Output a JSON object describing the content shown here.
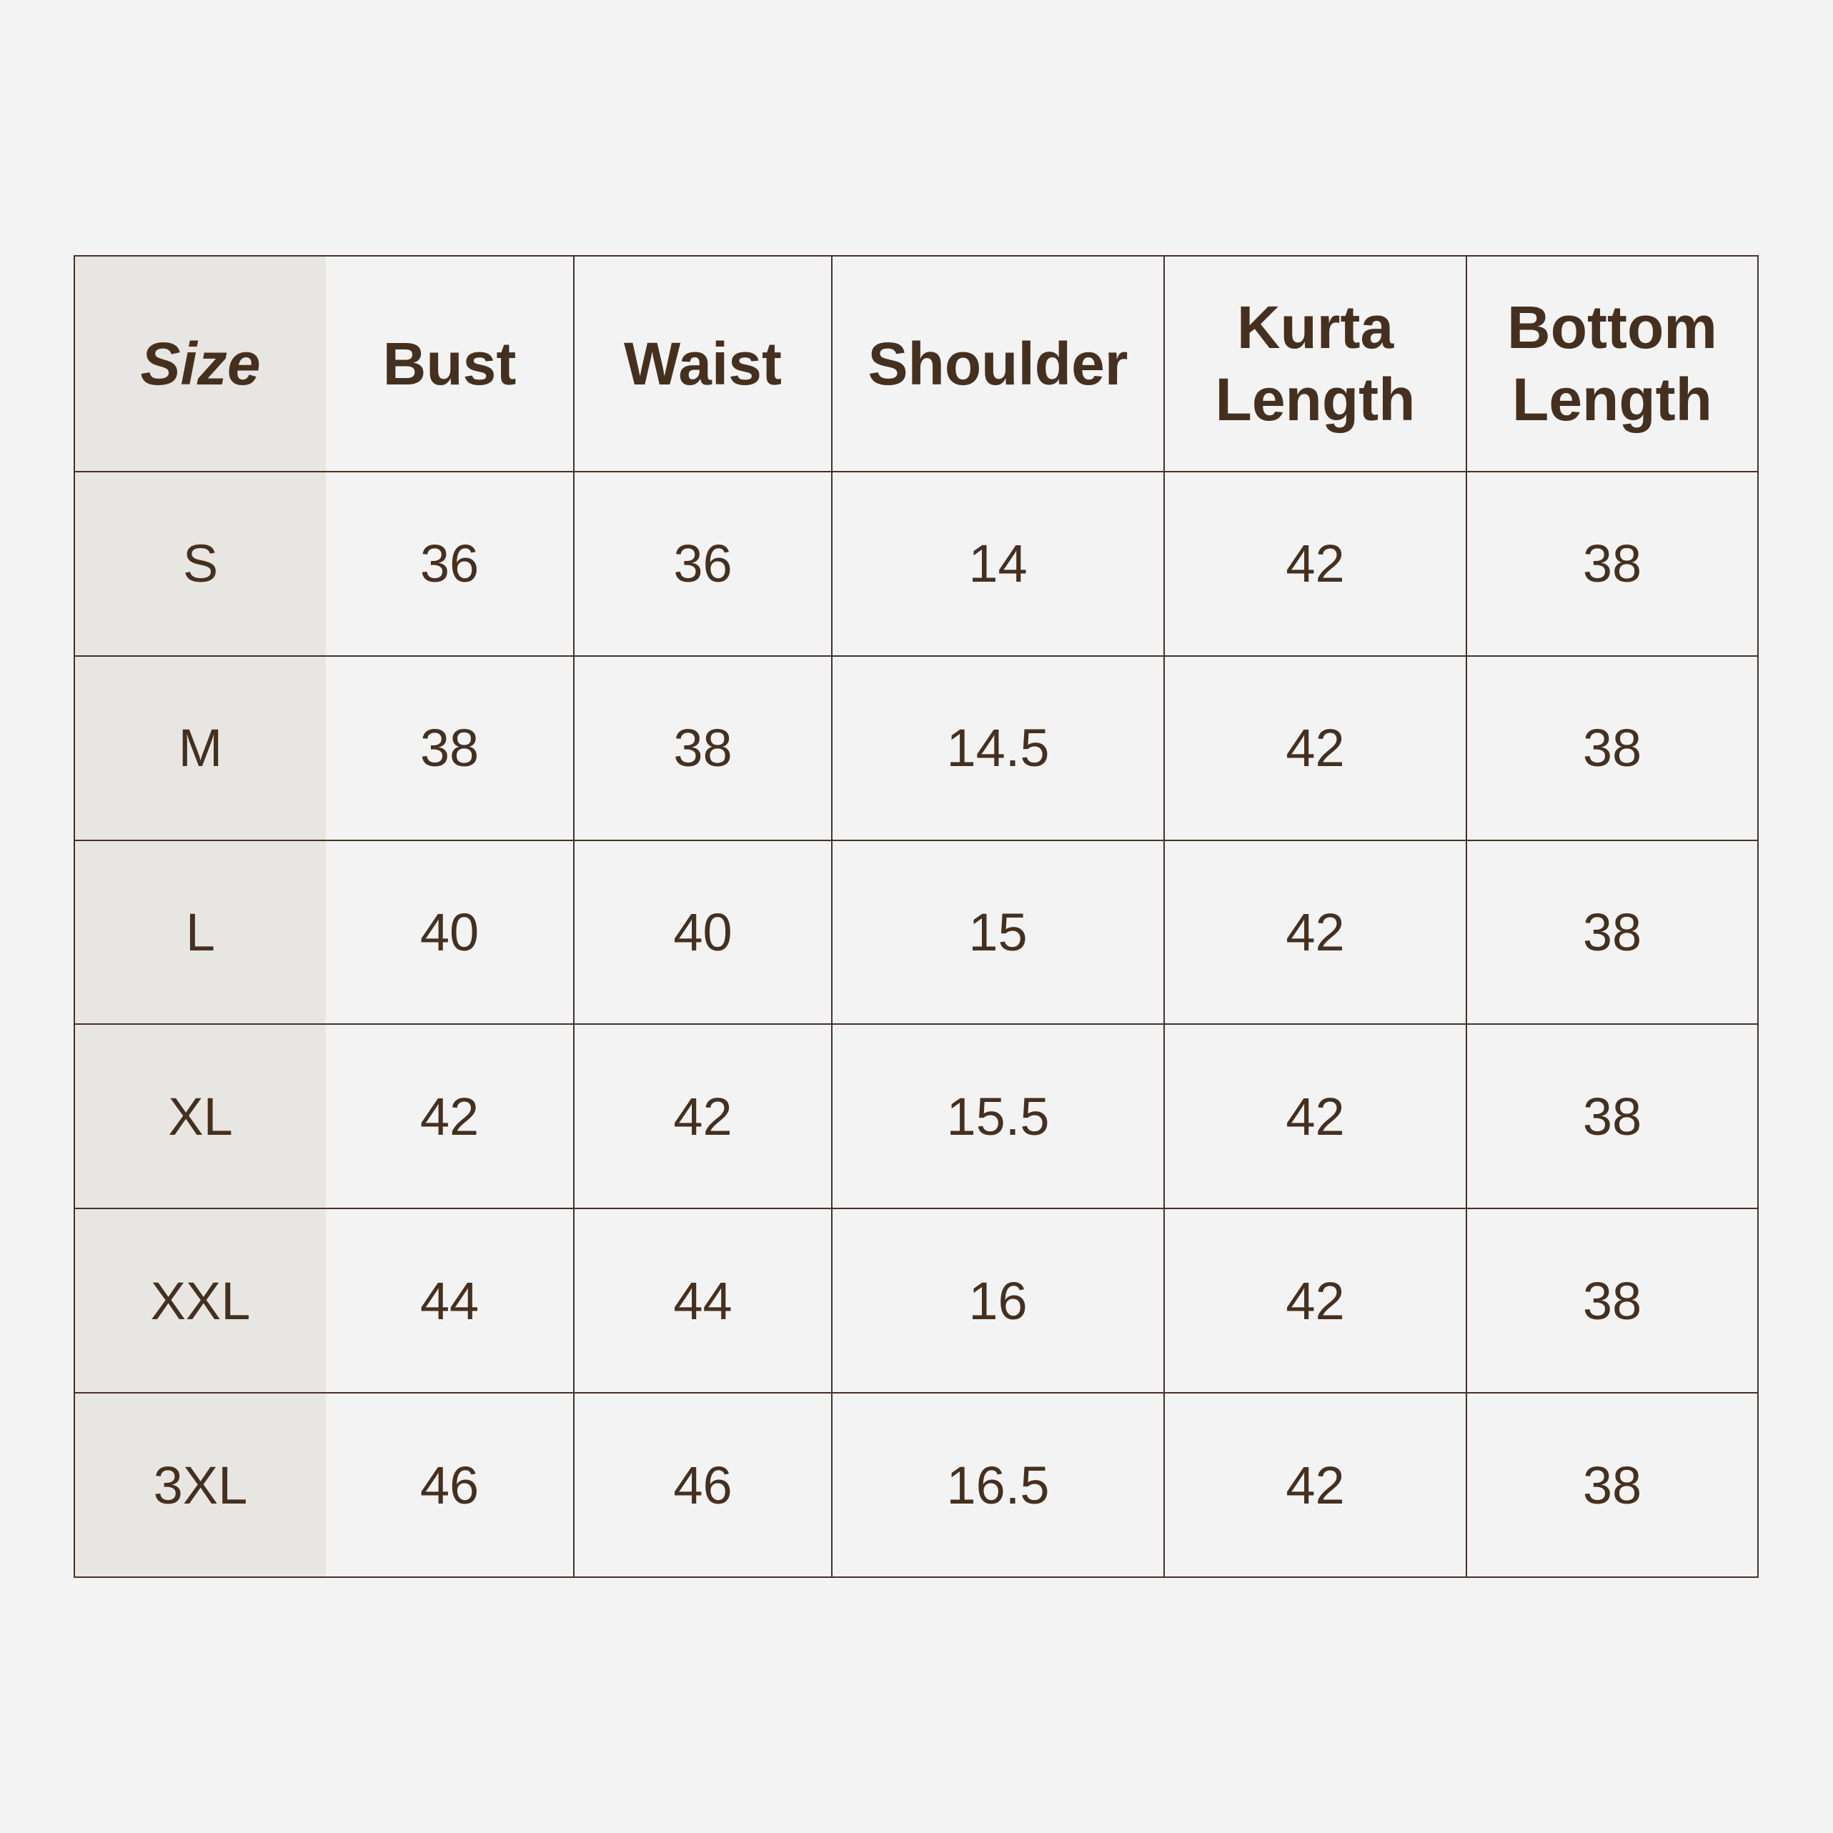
{
  "colors": {
    "background": "#f3f3f3",
    "text": "#45301f",
    "border": "#45322a",
    "size_column": "#e8e6e2"
  },
  "headers": [
    "Size",
    "Bust",
    "Waist",
    "Shoulder",
    "Kurta Length",
    "Bottom Length"
  ],
  "rows": [
    [
      "S",
      "36",
      "36",
      "14",
      "42",
      "38"
    ],
    [
      "M",
      "38",
      "38",
      "14.5",
      "42",
      "38"
    ],
    [
      "L",
      "40",
      "40",
      "15",
      "42",
      "38"
    ],
    [
      "XL",
      "42",
      "42",
      "15.5",
      "42",
      "38"
    ],
    [
      "XXL",
      "44",
      "44",
      "16",
      "42",
      "38"
    ],
    [
      "3XL",
      "46",
      "46",
      "16.5",
      "42",
      "38"
    ]
  ]
}
